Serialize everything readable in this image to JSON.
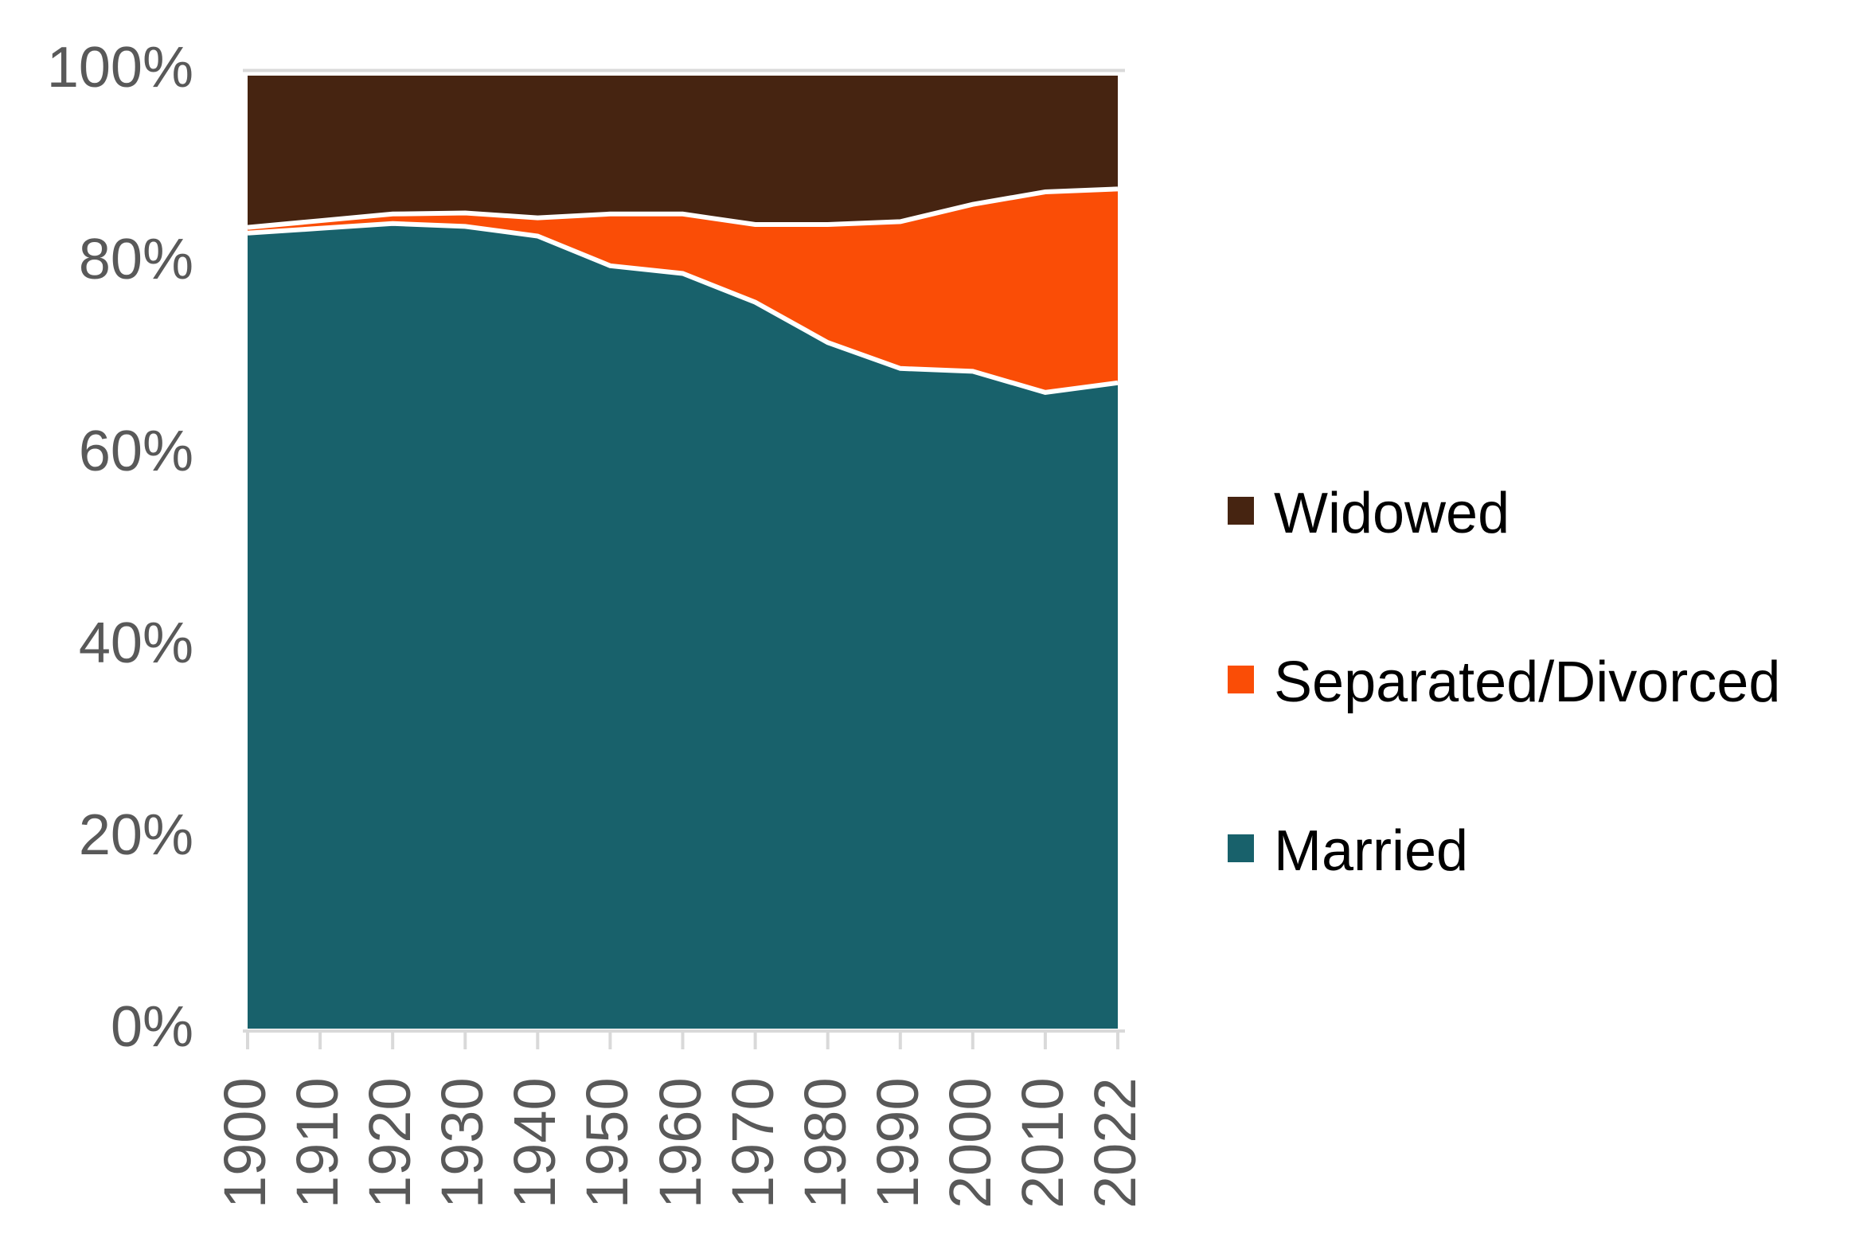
{
  "chart_data": {
    "type": "area",
    "stacked": true,
    "title": "",
    "xlabel": "",
    "ylabel": "",
    "unit": "percent",
    "ylim": [
      0,
      100
    ],
    "grid": "top-border-and-bottom-axis-only",
    "legend_position": "right",
    "categories": [
      "1900",
      "1910",
      "1920",
      "1930",
      "1940",
      "1950",
      "1960",
      "1970",
      "1980",
      "1990",
      "2000",
      "2010",
      "2022"
    ],
    "y_ticks": [
      "0%",
      "20%",
      "40%",
      "60%",
      "80%",
      "100%"
    ],
    "series": [
      {
        "name": "Married",
        "color": "#18616B",
        "values": [
          83.0,
          83.5,
          84.0,
          83.7,
          82.7,
          79.6,
          78.8,
          75.8,
          71.6,
          68.9,
          68.6,
          66.4,
          67.4
        ]
      },
      {
        "name": "Separated/Divorced",
        "color": "#FA4D06",
        "values": [
          0.6,
          0.8,
          1.0,
          1.4,
          1.9,
          5.4,
          6.2,
          8.1,
          12.3,
          15.3,
          17.4,
          20.9,
          20.2
        ]
      },
      {
        "name": "Widowed",
        "color": "#462411",
        "values": [
          16.4,
          15.7,
          15.0,
          14.9,
          15.4,
          15.0,
          15.0,
          16.1,
          16.1,
          15.8,
          14.0,
          12.7,
          12.4
        ]
      }
    ],
    "boundary_stroke_color": "#FFFFFF",
    "axis_line_color": "#D9D9D9",
    "tick_label_color": "#595959"
  },
  "legend": {
    "items": [
      {
        "label": "Widowed",
        "color": "#462411"
      },
      {
        "label": "Separated/Divorced",
        "color": "#FA4D06"
      },
      {
        "label": "Married",
        "color": "#18616B"
      }
    ]
  }
}
